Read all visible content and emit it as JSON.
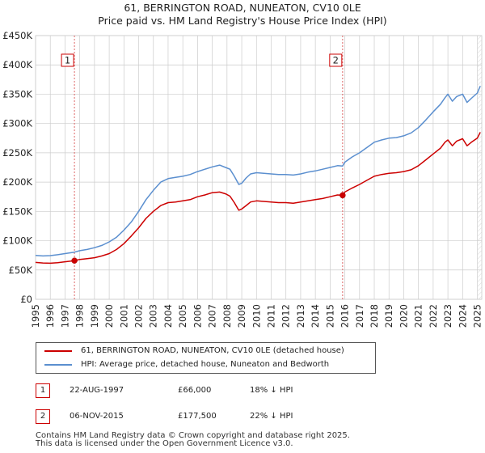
{
  "title_line1": "61, BERRINGTON ROAD, NUNEATON, CV10 0LE",
  "title_line2": "Price paid vs. HM Land Registry's House Price Index (HPI)",
  "chart_data": {
    "type": "line",
    "xlim": [
      1995.0,
      2025.3
    ],
    "ylim": [
      0,
      450000
    ],
    "y_ticks": [
      {
        "value": 0,
        "label": "£0"
      },
      {
        "value": 50000,
        "label": "£50K"
      },
      {
        "value": 100000,
        "label": "£100K"
      },
      {
        "value": 150000,
        "label": "£150K"
      },
      {
        "value": 200000,
        "label": "£200K"
      },
      {
        "value": 250000,
        "label": "£250K"
      },
      {
        "value": 300000,
        "label": "£300K"
      },
      {
        "value": 350000,
        "label": "£350K"
      },
      {
        "value": 400000,
        "label": "£400K"
      },
      {
        "value": 450000,
        "label": "£450K"
      }
    ],
    "x_ticks": [
      1995,
      1996,
      1997,
      1998,
      1999,
      2000,
      2001,
      2002,
      2003,
      2004,
      2005,
      2006,
      2007,
      2008,
      2009,
      2010,
      2011,
      2012,
      2013,
      2014,
      2015,
      2016,
      2017,
      2018,
      2019,
      2020,
      2021,
      2022,
      2023,
      2024,
      2025
    ],
    "grid": true,
    "series": [
      {
        "name": "61, BERRINGTON ROAD, NUNEATON, CV10 0LE (detached house)",
        "color": "#cc0000",
        "x": [
          1995.0,
          1995.5,
          1996.0,
          1996.5,
          1997.0,
          1997.64,
          1998.0,
          1998.5,
          1999.0,
          1999.5,
          2000.0,
          2000.5,
          2001.0,
          2001.5,
          2002.0,
          2002.5,
          2003.0,
          2003.5,
          2004.0,
          2004.5,
          2005.0,
          2005.5,
          2006.0,
          2006.5,
          2007.0,
          2007.5,
          2007.9,
          2008.2,
          2008.5,
          2008.8,
          2009.0,
          2009.3,
          2009.6,
          2010.0,
          2010.5,
          2011.0,
          2011.5,
          2012.0,
          2012.5,
          2013.0,
          2013.5,
          2014.0,
          2014.5,
          2015.0,
          2015.5,
          2015.85,
          2016.0,
          2016.5,
          2017.0,
          2017.5,
          2018.0,
          2018.5,
          2019.0,
          2019.5,
          2020.0,
          2020.5,
          2021.0,
          2021.5,
          2022.0,
          2022.5,
          2022.8,
          2023.0,
          2023.3,
          2023.6,
          2024.0,
          2024.3,
          2024.6,
          2025.0,
          2025.2
        ],
        "values": [
          63000,
          62000,
          61500,
          62500,
          64000,
          66000,
          68000,
          69500,
          71000,
          74000,
          78000,
          85000,
          95000,
          108000,
          122000,
          138000,
          150000,
          160000,
          165000,
          166000,
          168000,
          170000,
          175000,
          178000,
          182000,
          183000,
          180000,
          176000,
          165000,
          152000,
          154000,
          160000,
          166000,
          168000,
          167000,
          166000,
          165000,
          165000,
          164000,
          166000,
          168000,
          170000,
          172000,
          175000,
          178000,
          177500,
          183000,
          190000,
          196000,
          203000,
          210000,
          213000,
          215000,
          216000,
          218000,
          221000,
          228000,
          238000,
          248000,
          258000,
          268000,
          272000,
          262000,
          270000,
          274000,
          262000,
          268000,
          275000,
          285000
        ]
      },
      {
        "name": "HPI: Average price, detached house, Nuneaton and Bedworth",
        "color": "#5b8fcf",
        "x": [
          1995.0,
          1995.5,
          1996.0,
          1996.5,
          1997.0,
          1997.64,
          1998.0,
          1998.5,
          1999.0,
          1999.5,
          2000.0,
          2000.5,
          2001.0,
          2001.5,
          2002.0,
          2002.5,
          2003.0,
          2003.5,
          2004.0,
          2004.5,
          2005.0,
          2005.5,
          2006.0,
          2006.5,
          2007.0,
          2007.5,
          2007.9,
          2008.2,
          2008.5,
          2008.8,
          2009.0,
          2009.3,
          2009.6,
          2010.0,
          2010.5,
          2011.0,
          2011.5,
          2012.0,
          2012.5,
          2013.0,
          2013.5,
          2014.0,
          2014.5,
          2015.0,
          2015.5,
          2015.85,
          2016.0,
          2016.5,
          2017.0,
          2017.5,
          2018.0,
          2018.5,
          2019.0,
          2019.5,
          2020.0,
          2020.5,
          2021.0,
          2021.5,
          2022.0,
          2022.5,
          2022.8,
          2023.0,
          2023.3,
          2023.6,
          2024.0,
          2024.3,
          2024.6,
          2025.0,
          2025.2
        ],
        "values": [
          75000,
          74000,
          74500,
          76000,
          78000,
          80500,
          83000,
          85000,
          88000,
          92000,
          98000,
          106000,
          118000,
          132000,
          150000,
          170000,
          186000,
          200000,
          206000,
          208000,
          210000,
          213000,
          218000,
          222000,
          226000,
          229000,
          225000,
          222000,
          210000,
          196000,
          198000,
          207000,
          214000,
          216000,
          215000,
          214000,
          213000,
          213000,
          212000,
          214000,
          217000,
          219000,
          222000,
          225000,
          228000,
          227500,
          234000,
          243000,
          250000,
          259000,
          268000,
          272000,
          275000,
          276000,
          279000,
          284000,
          293000,
          306000,
          320000,
          333000,
          344000,
          350000,
          338000,
          346000,
          350000,
          336000,
          343000,
          352000,
          364000
        ]
      }
    ],
    "markers": [
      {
        "label": "1",
        "x": 1997.64,
        "value": 66000
      },
      {
        "label": "2",
        "x": 2015.85,
        "value": 177500
      }
    ]
  },
  "legend": {
    "red_label": "61, BERRINGTON ROAD, NUNEATON, CV10 0LE (detached house)",
    "blue_label": "HPI: Average price, detached house, Nuneaton and Bedworth"
  },
  "transactions": [
    {
      "num": "1",
      "date": "22-AUG-1997",
      "price": "£66,000",
      "hpi": "18% ↓ HPI"
    },
    {
      "num": "2",
      "date": "06-NOV-2015",
      "price": "£177,500",
      "hpi": "22% ↓ HPI"
    }
  ],
  "footer_line1": "Contains HM Land Registry data © Crown copyright and database right 2025.",
  "footer_line2": "This data is licensed under the Open Government Licence v3.0.",
  "colors": {
    "red": "#cc0000",
    "blue": "#5b8fcf",
    "hatch": "#dddddd",
    "grid": "#cccccc"
  }
}
